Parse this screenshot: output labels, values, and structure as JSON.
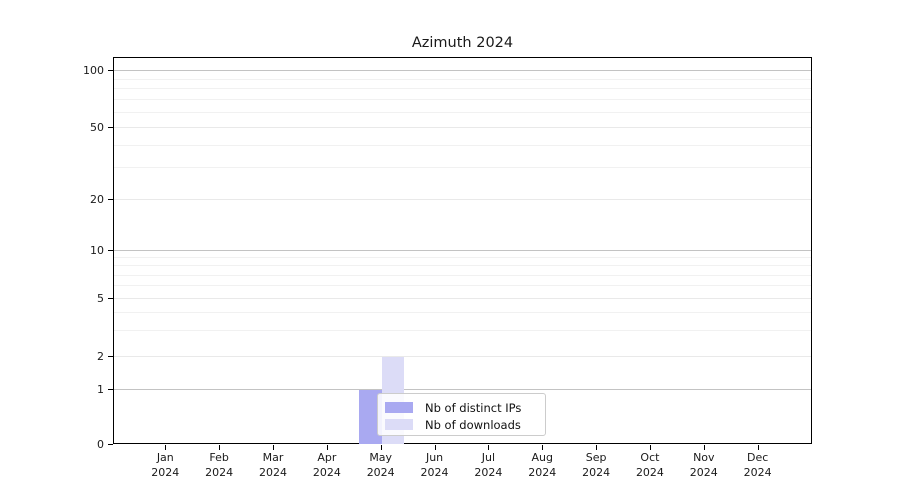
{
  "title": "Azimuth 2024",
  "chart_data": {
    "type": "bar",
    "title": "Azimuth 2024",
    "categories": [
      "Jan 2024",
      "Feb 2024",
      "Mar 2024",
      "Apr 2024",
      "May 2024",
      "Jun 2024",
      "Jul 2024",
      "Aug 2024",
      "Sep 2024",
      "Oct 2024",
      "Nov 2024",
      "Dec 2024"
    ],
    "series": [
      {
        "name": "Nb of distinct IPs",
        "color": "#a9a9f1",
        "values": [
          0,
          0,
          0,
          0,
          1,
          0,
          0,
          0,
          0,
          0,
          0,
          0
        ]
      },
      {
        "name": "Nb of downloads",
        "color": "#dcdcf7",
        "values": [
          0,
          0,
          0,
          0,
          2,
          0,
          0,
          0,
          0,
          0,
          0,
          0
        ]
      }
    ],
    "yscale": "symlog",
    "yticks": [
      0,
      1,
      2,
      5,
      10,
      20,
      50,
      100
    ],
    "ylim": [
      0,
      120
    ],
    "xlabel": "",
    "ylabel": "",
    "grid": "both",
    "legend_position": "lower-center"
  },
  "y_axis": {
    "tick_labels": [
      "0",
      "1",
      "2",
      "5",
      "10",
      "20",
      "50",
      "100"
    ]
  },
  "x_axis": {
    "months": [
      "Jan",
      "Feb",
      "Mar",
      "Apr",
      "May",
      "Jun",
      "Jul",
      "Aug",
      "Sep",
      "Oct",
      "Nov",
      "Dec"
    ],
    "year": "2024"
  },
  "legend": {
    "items": [
      {
        "label": "Nb of distinct IPs",
        "color": "#a9a9f1"
      },
      {
        "label": "Nb of downloads",
        "color": "#dcdcf7"
      }
    ]
  }
}
